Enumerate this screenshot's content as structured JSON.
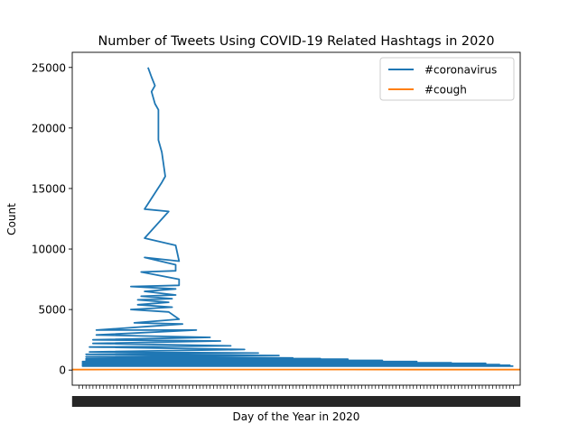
{
  "chart_data": {
    "type": "line",
    "title": "Number of Tweets Using COVID-19 Related Hashtags in 2020",
    "xlabel": "Day of the Year in 2020",
    "ylabel": "Count",
    "ylim": [
      -1250,
      26250
    ],
    "xlim": [
      0,
      130
    ],
    "yticks": [
      0,
      5000,
      10000,
      15000,
      20000,
      25000
    ],
    "ytick_labels": [
      "0",
      "5000",
      "10000",
      "15000",
      "20000",
      "25000"
    ],
    "legend": {
      "placement": "upper-right"
    },
    "grid": false,
    "series": [
      {
        "name": "#coronavirus",
        "color": "#1f77b4",
        "points": [
          [
            22,
            25000
          ],
          [
            23,
            24200
          ],
          [
            24,
            23500
          ],
          [
            23,
            23000
          ],
          [
            24,
            22000
          ],
          [
            25,
            21500
          ],
          [
            25,
            19000
          ],
          [
            26,
            18000
          ],
          [
            27,
            16000
          ],
          [
            26,
            15500
          ],
          [
            21,
            13300
          ],
          [
            28,
            13100
          ],
          [
            21,
            10900
          ],
          [
            30,
            10300
          ],
          [
            31,
            9000
          ],
          [
            21,
            9300
          ],
          [
            30,
            8700
          ],
          [
            30,
            8200
          ],
          [
            20,
            8100
          ],
          [
            31,
            7500
          ],
          [
            31,
            7000
          ],
          [
            17,
            6900
          ],
          [
            30,
            6700
          ],
          [
            21,
            6500
          ],
          [
            30,
            6200
          ],
          [
            20,
            6100
          ],
          [
            29,
            5900
          ],
          [
            19,
            5800
          ],
          [
            28,
            5600
          ],
          [
            19,
            5400
          ],
          [
            29,
            5200
          ],
          [
            17,
            5000
          ],
          [
            28,
            4800
          ],
          [
            31,
            4200
          ],
          [
            18,
            3900
          ],
          [
            32,
            3800
          ],
          [
            7,
            3300
          ],
          [
            36,
            3300
          ],
          [
            7,
            2900
          ],
          [
            40,
            2700
          ],
          [
            6,
            2500
          ],
          [
            43,
            2400
          ],
          [
            6,
            2200
          ],
          [
            46,
            2000
          ],
          [
            5,
            1900
          ],
          [
            50,
            1700
          ],
          [
            5,
            1500
          ],
          [
            54,
            1400
          ],
          [
            4,
            1300
          ],
          [
            60,
            1200
          ],
          [
            4,
            1100
          ],
          [
            64,
            1000
          ],
          [
            4,
            950
          ],
          [
            72,
            950
          ],
          [
            4,
            900
          ],
          [
            80,
            900
          ],
          [
            4,
            800
          ],
          [
            90,
            800
          ],
          [
            3,
            700
          ],
          [
            100,
            700
          ],
          [
            3,
            600
          ],
          [
            110,
            600
          ],
          [
            3,
            550
          ],
          [
            120,
            550
          ],
          [
            3,
            450
          ],
          [
            124,
            450
          ],
          [
            3,
            400
          ],
          [
            127,
            400
          ],
          [
            3,
            320
          ],
          [
            128,
            320
          ]
        ]
      },
      {
        "name": "#cough",
        "color": "#ff7f0e",
        "points": [
          [
            0,
            40
          ],
          [
            20,
            45
          ],
          [
            40,
            50
          ],
          [
            60,
            50
          ],
          [
            80,
            45
          ],
          [
            100,
            40
          ],
          [
            120,
            40
          ],
          [
            130,
            40
          ]
        ]
      }
    ]
  }
}
